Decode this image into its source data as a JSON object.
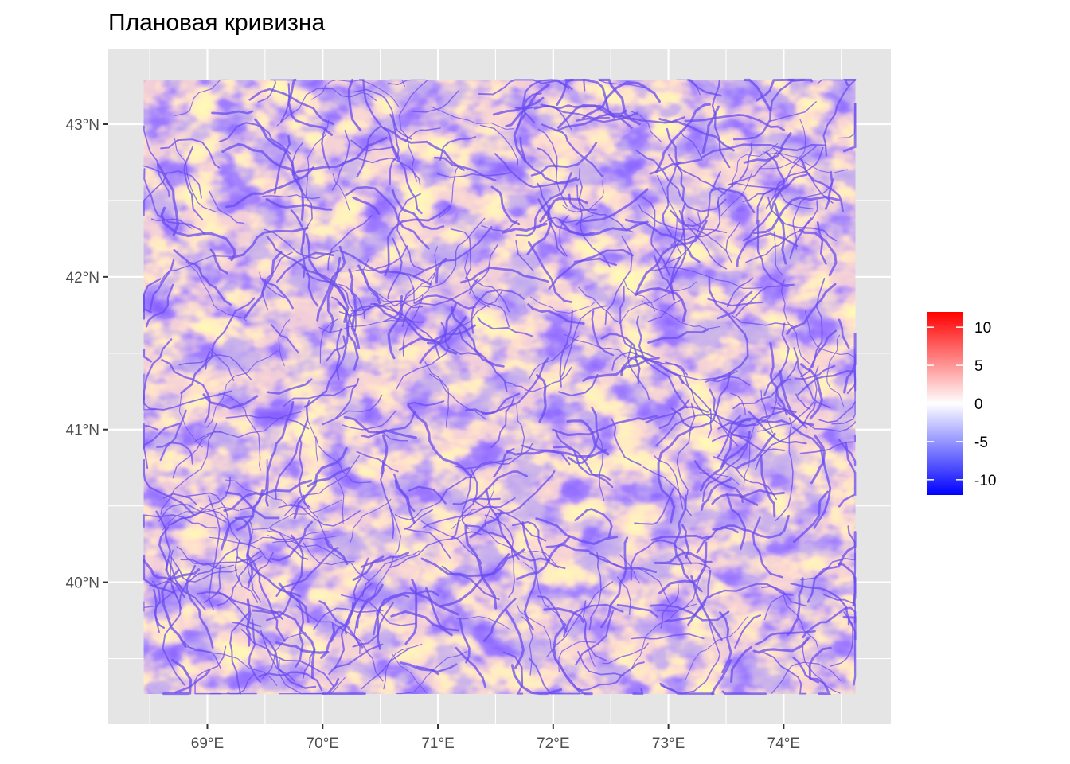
{
  "title": "Плановая кривизна",
  "map": {
    "lon_ticks": [
      "69°E",
      "70°E",
      "71°E",
      "72°E",
      "73°E",
      "74°E"
    ],
    "lon_values": [
      69,
      70,
      71,
      72,
      73,
      74
    ],
    "lat_ticks": [
      "43°N",
      "42°N",
      "41°N",
      "40°N"
    ],
    "lat_values": [
      43,
      42,
      41,
      40
    ],
    "extent": {
      "lon": [
        68.45,
        74.62
      ],
      "lat": [
        39.27,
        43.29
      ]
    },
    "panel_extent": {
      "lon": [
        68.14,
        74.93
      ],
      "lat": [
        39.07,
        43.49
      ]
    },
    "background_color": "#e5e5e5",
    "grid_color": "#ffffff"
  },
  "legend": {
    "labels": [
      "10",
      "5",
      "0",
      "-5",
      "-10"
    ],
    "values": [
      10,
      5,
      0,
      -5,
      -10
    ],
    "range": [
      -12,
      12
    ],
    "colors": {
      "high": "#ff0000",
      "mid": "#ffffff",
      "low": "#0000ff"
    }
  }
}
